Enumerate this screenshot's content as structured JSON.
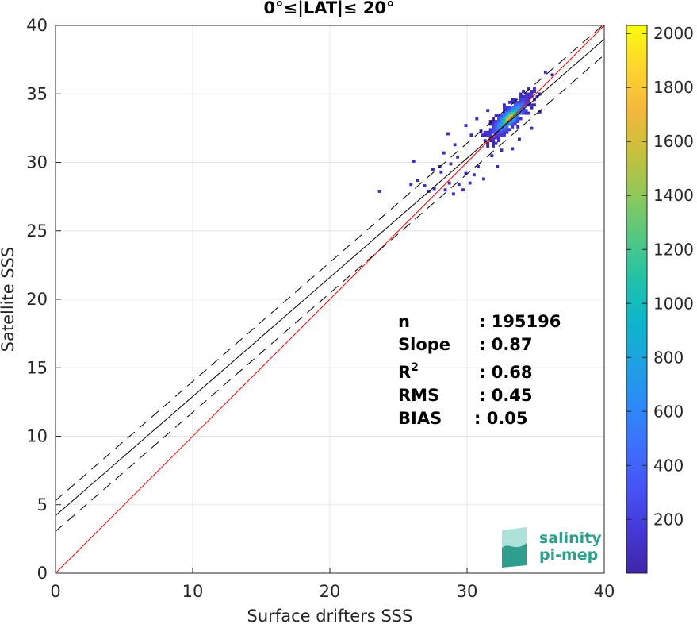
{
  "chart_data": {
    "type": "heatmap",
    "title": "0°≤|LAT|≤ 20°",
    "xlabel": "Surface drifters SSS",
    "ylabel": "Satellite SSS",
    "xlim": [
      0,
      40
    ],
    "ylim": [
      0,
      40
    ],
    "xticks": [
      "0",
      "10",
      "20",
      "30",
      "40"
    ],
    "yticks": [
      "0",
      "5",
      "10",
      "15",
      "20",
      "25",
      "30",
      "35",
      "40"
    ],
    "grid": true,
    "colorbar": {
      "min": 1,
      "max": 2030,
      "ticks": [
        "200",
        "400",
        "600",
        "800",
        "1000",
        "1200",
        "1400",
        "1600",
        "1800",
        "2000"
      ],
      "colormap": "parula",
      "colors": [
        "#3e26a8",
        "#4538d7",
        "#4753f4",
        "#3e6ffe",
        "#2c8af7",
        "#1da2e1",
        "#0cb6c9",
        "#22c2a8",
        "#55c881",
        "#91c85a",
        "#c8c03b",
        "#f4b83c",
        "#fed52d",
        "#f9fb0e"
      ]
    },
    "lines": [
      {
        "name": "one-to-one",
        "color": "#ff0000",
        "style": "solid",
        "intercept": 0,
        "slope": 1
      },
      {
        "name": "regression",
        "color": "#000000",
        "style": "solid",
        "intercept": 4.2,
        "slope": 0.87
      },
      {
        "name": "upper-bound",
        "color": "#000000",
        "style": "dashed",
        "intercept": 5.3,
        "slope": 0.87
      },
      {
        "name": "lower-bound",
        "color": "#000000",
        "style": "dashed",
        "intercept": 3.05,
        "slope": 0.87
      }
    ],
    "density_cluster": {
      "center_x": 33,
      "center_y": 33.2,
      "x_range": [
        23.5,
        37
      ],
      "y_range": [
        27.5,
        36.8
      ]
    },
    "stats": [
      {
        "label": "n",
        "value": ": 195196"
      },
      {
        "label": "Slope",
        "value": ": 0.87"
      },
      {
        "label": "R",
        "sup": "2",
        "value": ": 0.68"
      },
      {
        "label": "RMS",
        "value": ": 0.45"
      },
      {
        "label": "BIAS",
        "value": ": 0.05"
      }
    ]
  },
  "logo": {
    "line1": "salinity",
    "line2": "pi-mep",
    "color": "#2e9e8e"
  }
}
